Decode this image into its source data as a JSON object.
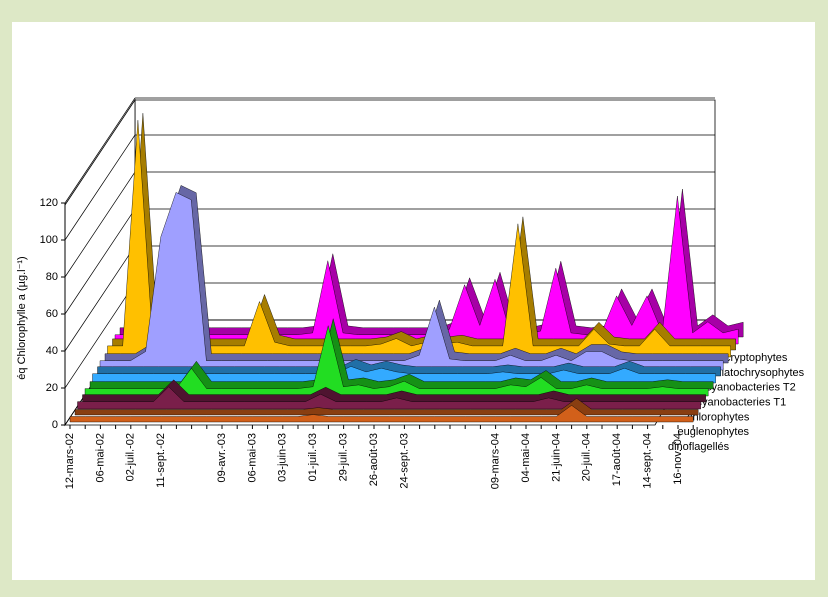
{
  "chart_data": {
    "type": "area",
    "y_label": "éq Chlorophylle a (µg.l⁻¹)",
    "categories": [
      "12-mars-02",
      null,
      "06-mai-02",
      null,
      "02-juil.-02",
      null,
      "11-sept.-02",
      null,
      null,
      null,
      "09-avr.-03",
      null,
      "06-mai-03",
      null,
      "03-juin-03",
      null,
      "01-juil.-03",
      null,
      "29-juil.-03",
      null,
      "26-août-03",
      null,
      "24-sept.-03",
      null,
      null,
      null,
      null,
      null,
      "09-mars-04",
      null,
      "04-mai-04",
      null,
      "21-juin-04",
      null,
      "20-juil.-04",
      null,
      "17-août-04",
      null,
      "14-sept.-04",
      null,
      "16-nov.-04",
      null
    ],
    "ylim": [
      0,
      120
    ],
    "yticks": [
      0,
      20,
      40,
      60,
      80,
      100,
      120
    ],
    "grid": true,
    "series": [
      {
        "name": "dinoflagellés",
        "color": "#d2601a",
        "values": [
          3,
          3,
          3,
          3,
          3,
          3,
          3,
          3,
          3,
          3,
          3,
          3,
          3,
          3,
          3,
          3,
          4,
          3,
          3,
          3,
          3,
          3,
          3,
          3,
          3,
          3,
          3,
          3,
          3,
          3,
          3,
          3,
          3,
          9,
          3,
          3,
          3,
          3,
          3,
          3,
          3,
          3
        ]
      },
      {
        "name": "euglenophytes",
        "color": "#7a1f4a",
        "values": [
          4,
          4,
          4,
          4,
          4,
          4,
          12,
          4,
          4,
          4,
          4,
          4,
          4,
          4,
          4,
          4,
          8,
          4,
          4,
          4,
          4,
          6,
          4,
          4,
          4,
          4,
          4,
          4,
          4,
          4,
          4,
          6,
          4,
          4,
          4,
          4,
          4,
          4,
          4,
          4,
          4,
          4
        ]
      },
      {
        "name": "chlorophytes",
        "color": "#22dd22",
        "values": [
          4,
          4,
          4,
          4,
          4,
          4,
          4,
          15,
          4,
          4,
          4,
          4,
          4,
          4,
          4,
          5,
          38,
          5,
          6,
          4,
          5,
          8,
          4,
          4,
          4,
          4,
          4,
          4,
          6,
          5,
          10,
          4,
          4,
          6,
          4,
          4,
          4,
          4,
          5,
          4,
          4,
          4
        ]
      },
      {
        "name": "cyanobacteries T1",
        "color": "#33aaff",
        "values": [
          5,
          5,
          5,
          5,
          5,
          5,
          5,
          5,
          5,
          5,
          5,
          5,
          5,
          5,
          5,
          5,
          5,
          9,
          6,
          8,
          6,
          5,
          5,
          5,
          5,
          5,
          5,
          6,
          5,
          5,
          5,
          7,
          5,
          5,
          5,
          8,
          5,
          5,
          5,
          5,
          5,
          5
        ]
      },
      {
        "name": "cyanobacteries T2",
        "color": "#9f9fff",
        "values": [
          5,
          5,
          5,
          10,
          72,
          96,
          92,
          5,
          5,
          5,
          5,
          5,
          5,
          5,
          5,
          5,
          5,
          5,
          5,
          5,
          5,
          8,
          34,
          6,
          5,
          5,
          5,
          8,
          5,
          5,
          8,
          5,
          10,
          10,
          6,
          5,
          5,
          5,
          5,
          5,
          5,
          5
        ]
      },
      {
        "name": "diatochrysophytes",
        "color": "#ffc000",
        "values": [
          6,
          6,
          128,
          6,
          6,
          6,
          6,
          6,
          6,
          6,
          30,
          8,
          6,
          6,
          6,
          6,
          6,
          6,
          7,
          10,
          6,
          8,
          7,
          8,
          6,
          6,
          6,
          72,
          6,
          6,
          6,
          6,
          15,
          7,
          6,
          6,
          15,
          6,
          6,
          6,
          6,
          6
        ]
      },
      {
        "name": "cryptophytes",
        "color": "#ff00ff",
        "values": [
          5,
          5,
          5,
          5,
          5,
          5,
          5,
          5,
          5,
          5,
          5,
          5,
          5,
          6,
          45,
          6,
          5,
          5,
          5,
          5,
          5,
          5,
          8,
          32,
          10,
          35,
          6,
          5,
          7,
          41,
          6,
          5,
          6,
          26,
          10,
          26,
          6,
          80,
          6,
          12,
          6,
          8
        ]
      }
    ]
  }
}
